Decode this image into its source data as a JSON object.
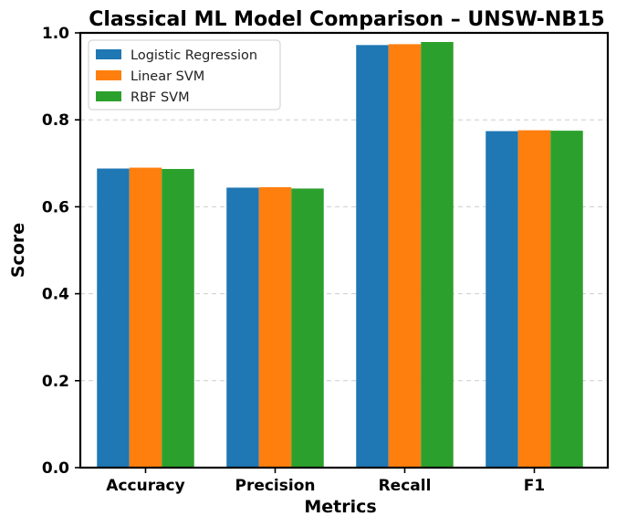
{
  "chart_data": {
    "type": "bar",
    "title": "Classical ML Model Comparison – UNSW-NB15",
    "xlabel": "Metrics",
    "ylabel": "Score",
    "ylim": [
      0,
      1.0
    ],
    "yticks": [
      "0.0",
      "0.2",
      "0.4",
      "0.6",
      "0.8",
      "1.0"
    ],
    "categories": [
      "Accuracy",
      "Precision",
      "Recall",
      "F1"
    ],
    "grid": "horizontal-dashed",
    "legend_position": "top-left",
    "series": [
      {
        "name": "Logistic Regression",
        "color": "#1f77b4",
        "values": [
          0.688,
          0.644,
          0.972,
          0.774
        ]
      },
      {
        "name": "Linear SVM",
        "color": "#ff7f0e",
        "values": [
          0.69,
          0.645,
          0.974,
          0.776
        ]
      },
      {
        "name": "RBF SVM",
        "color": "#2ca02c",
        "values": [
          0.687,
          0.642,
          0.979,
          0.775
        ]
      }
    ]
  }
}
